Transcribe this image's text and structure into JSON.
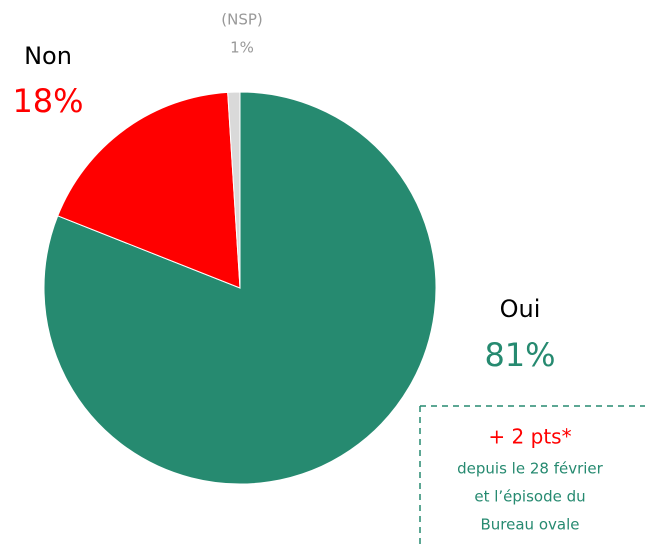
{
  "chart_data": {
    "type": "pie",
    "categories": [
      "Oui",
      "Non",
      "(NSP)"
    ],
    "values": [
      81,
      18,
      1
    ],
    "value_labels": [
      "81%",
      "18%",
      "1%"
    ],
    "colors": [
      "#268a70",
      "#ff0000",
      "#d9d9d9"
    ],
    "annotation": {
      "title": "+ 2 pts*",
      "lines": [
        "depuis le 28 février",
        "et l’épisode du",
        "Bureau ovale"
      ]
    }
  }
}
